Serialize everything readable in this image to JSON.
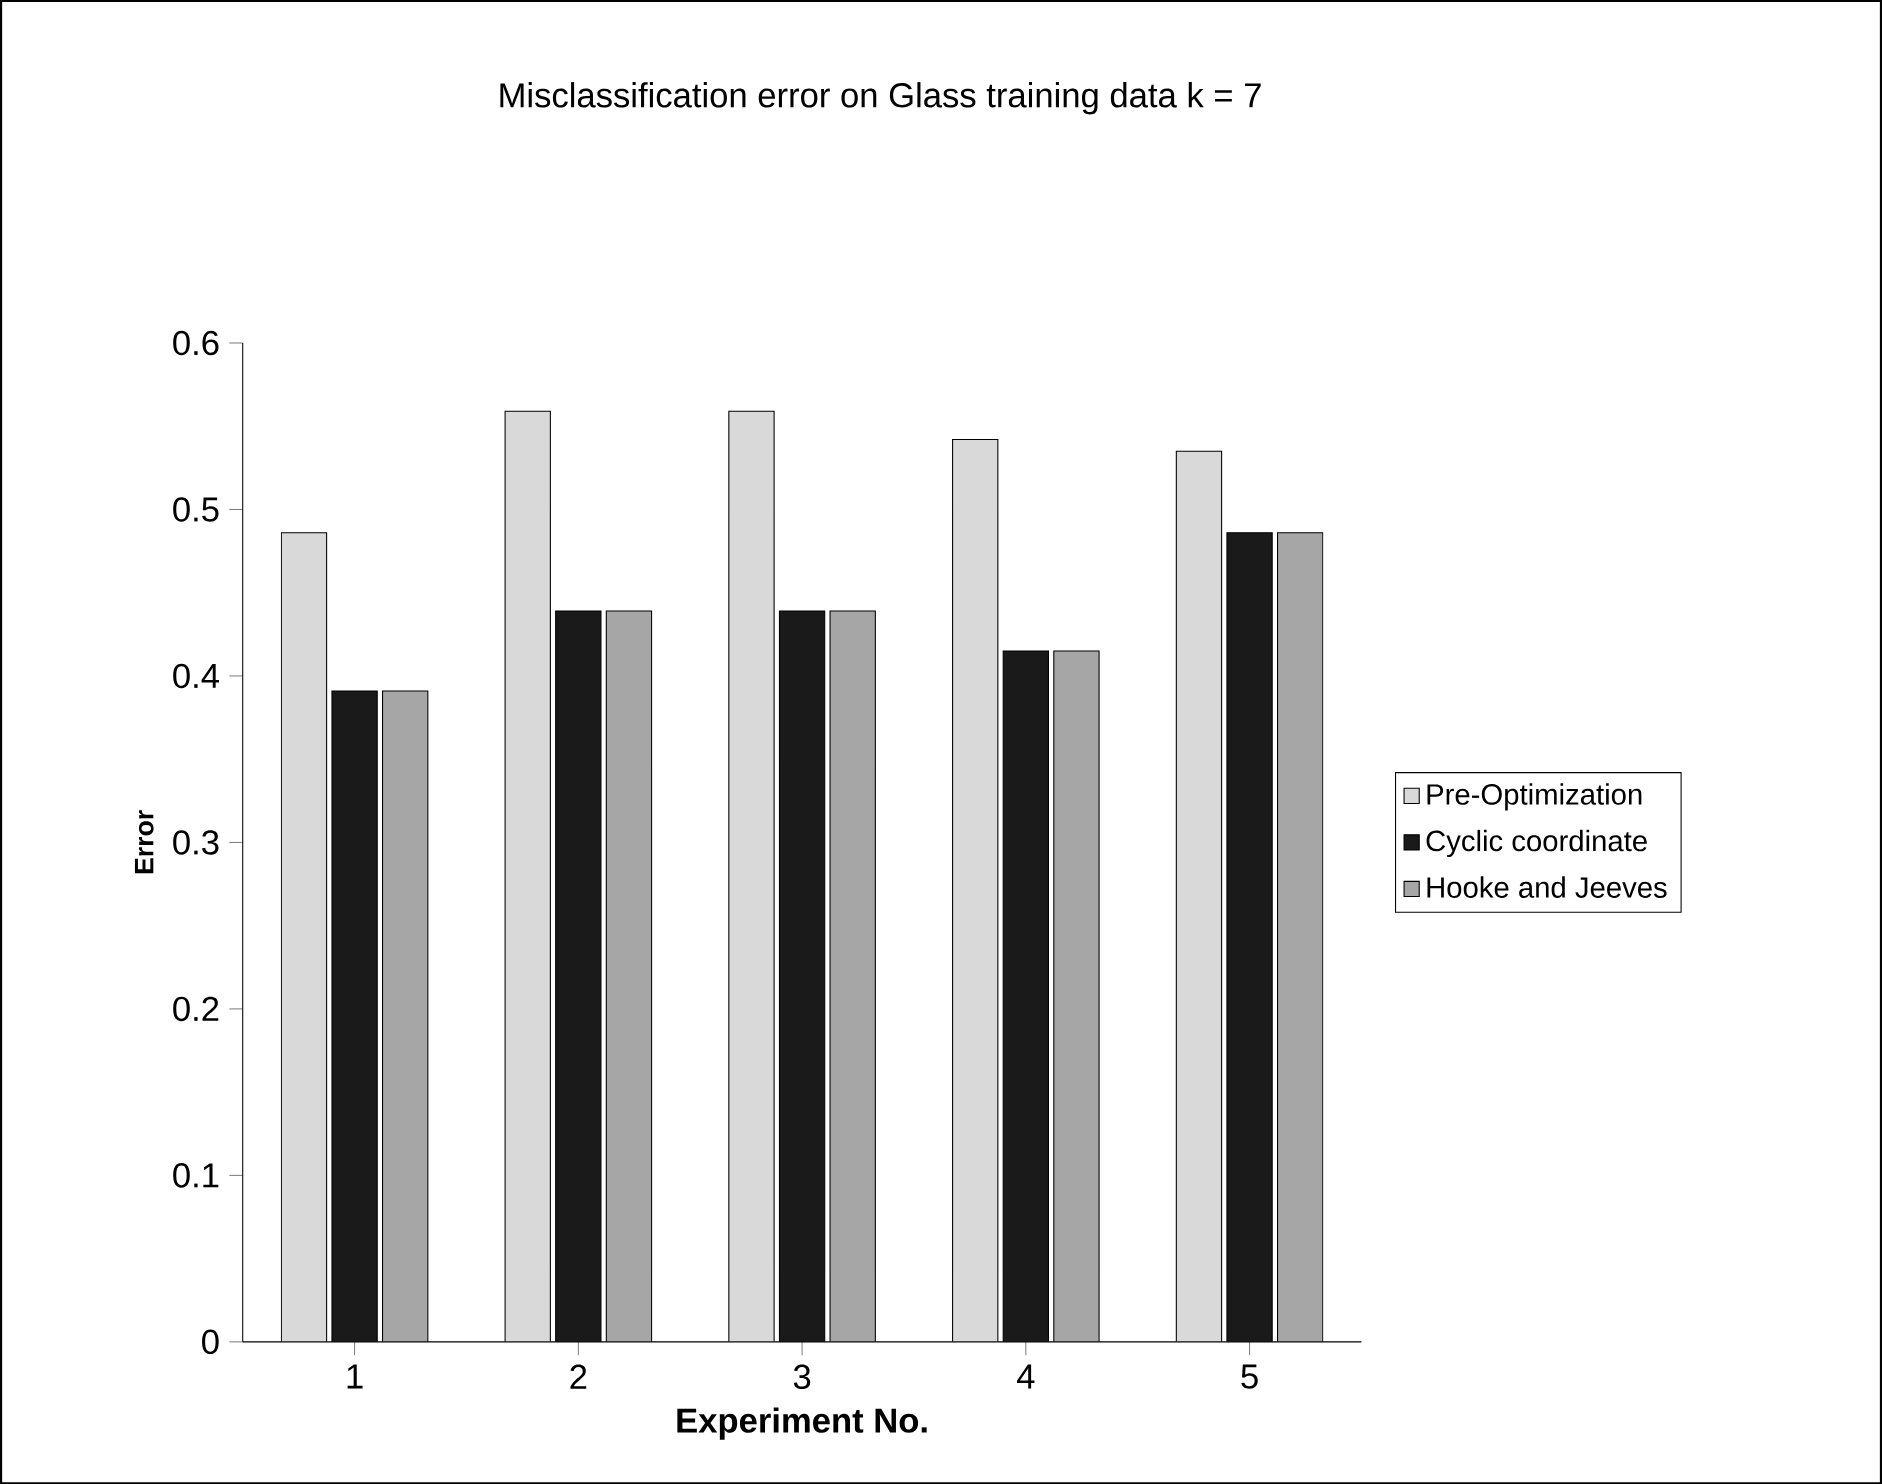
{
  "chart_data": {
    "type": "bar",
    "title": "Misclassification error on Glass training data k = 7",
    "xlabel": "Experiment No.",
    "ylabel": "Error",
    "categories": [
      "1",
      "2",
      "3",
      "4",
      "5"
    ],
    "series": [
      {
        "name": "Pre-Optimization",
        "color": "#d9d9d9",
        "values": [
          0.486,
          0.559,
          0.559,
          0.542,
          0.535
        ]
      },
      {
        "name": "Cyclic coordinate",
        "color": "#1a1a1a",
        "values": [
          0.391,
          0.439,
          0.439,
          0.415,
          0.486
        ]
      },
      {
        "name": "Hooke and Jeeves",
        "color": "#a6a6a6",
        "values": [
          0.391,
          0.439,
          0.439,
          0.415,
          0.486
        ]
      }
    ],
    "ylim": [
      0,
      0.6
    ],
    "yticks": [
      0,
      0.1,
      0.2,
      0.3,
      0.4,
      0.5,
      0.6
    ],
    "grid": false,
    "legend": "right"
  }
}
